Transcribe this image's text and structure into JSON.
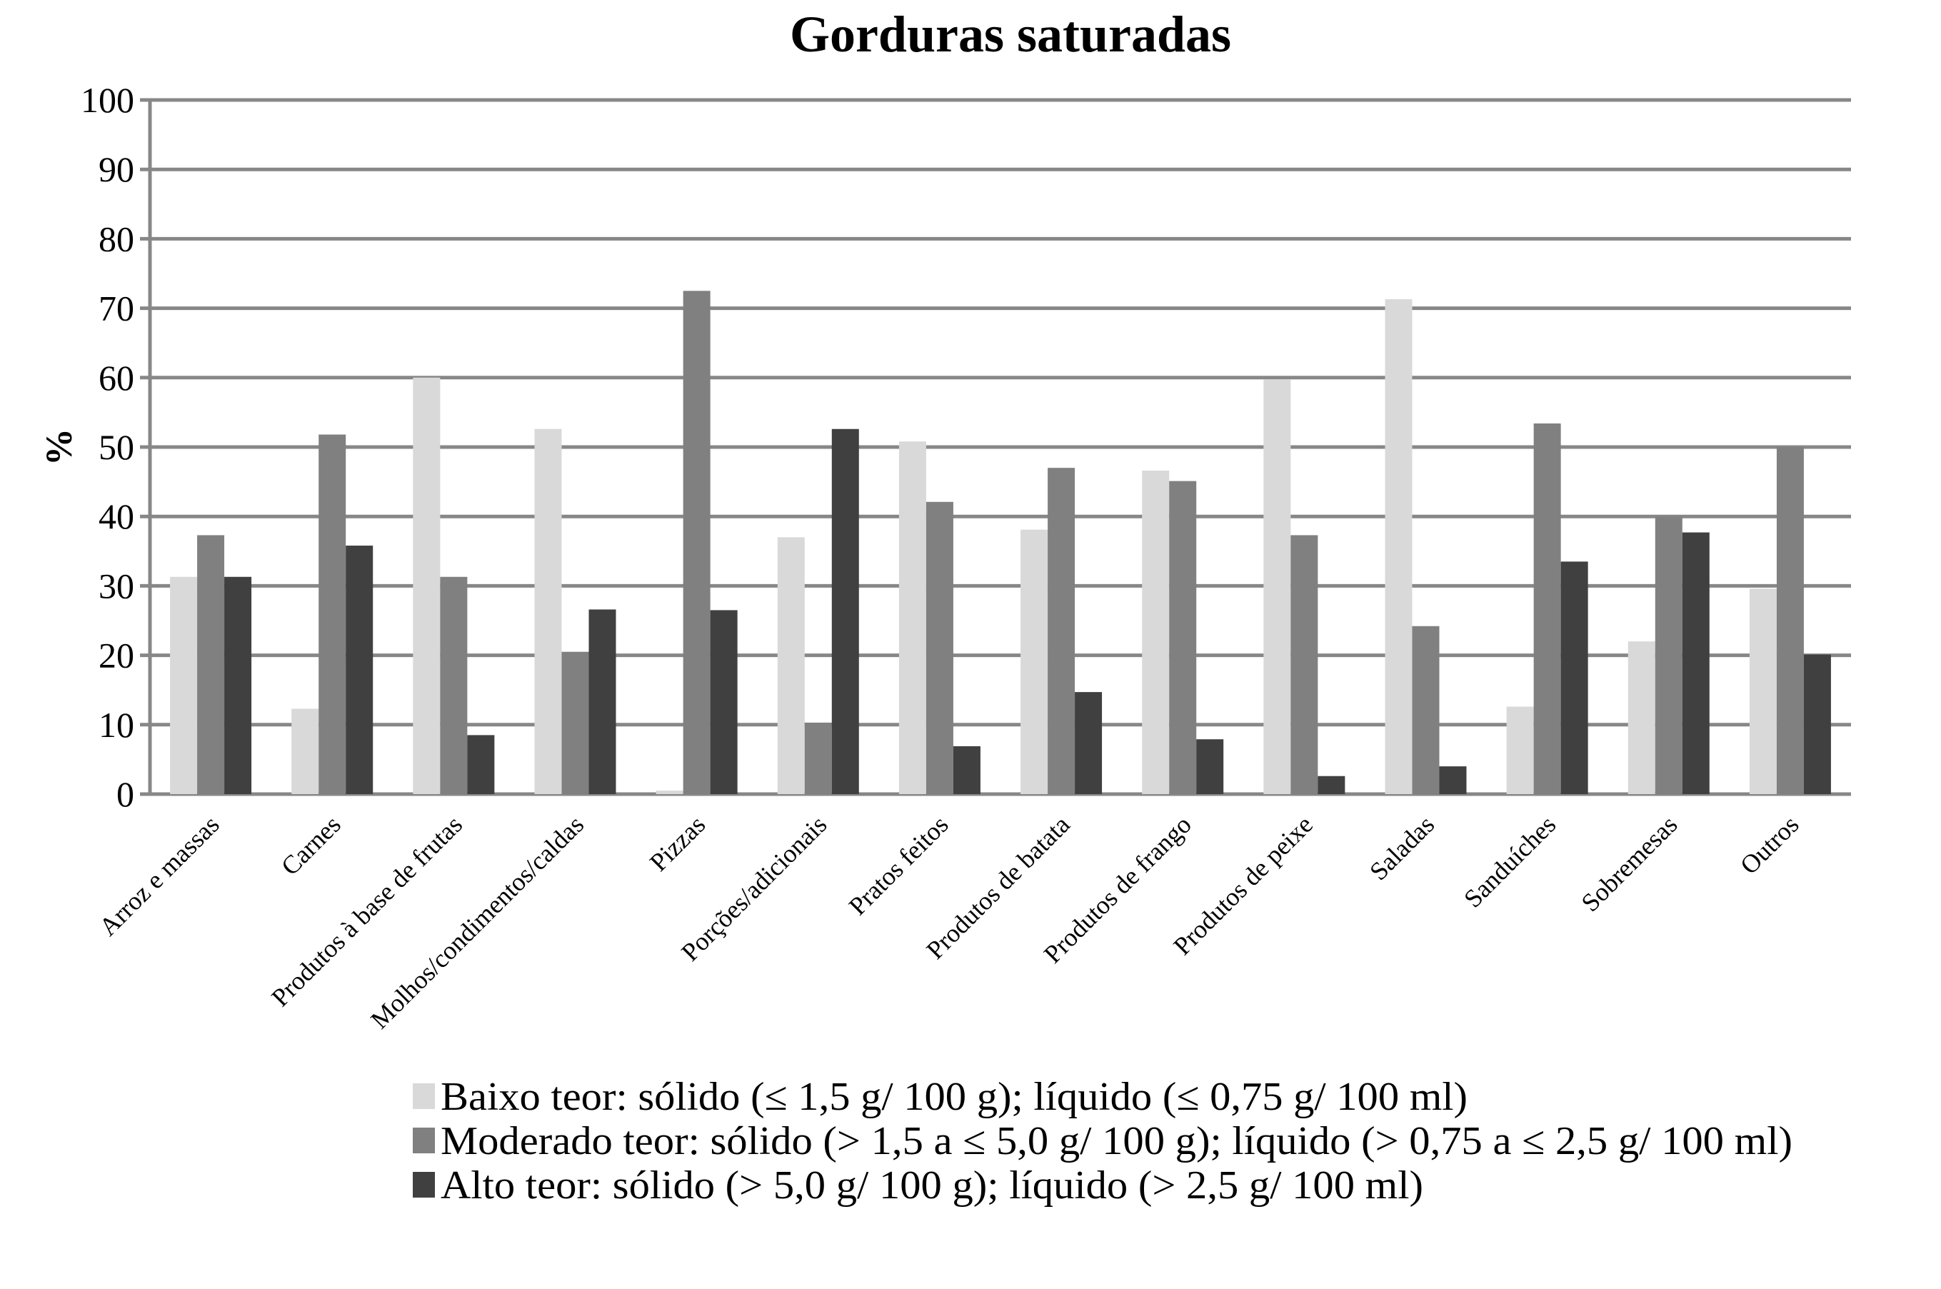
{
  "chart_data": {
    "type": "bar",
    "title": "Gorduras saturadas",
    "xlabel": "",
    "ylabel": "%",
    "ylim": [
      0,
      100
    ],
    "yticks": [
      0,
      10,
      20,
      30,
      40,
      50,
      60,
      70,
      80,
      90,
      100
    ],
    "grid": true,
    "legend_position": "bottom",
    "categories": [
      "Arroz e massas",
      "Carnes",
      "Produtos à base de frutas",
      "Molhos/condimentos/caldas",
      "Pizzas",
      "Porções/adicionais",
      "Pratos feitos",
      "Produtos de batata",
      "Produtos de frango",
      "Produtos de peixe",
      "Saladas",
      "Sanduíches",
      "Sobremesas",
      "Outros"
    ],
    "series": [
      {
        "name": "Baixo teor: sólido (≤ 1,5 g/ 100 g); líquido (≤ 0,75 g/ 100 ml)",
        "color": "#d9d9d9",
        "values": [
          31.3,
          12.3,
          60.0,
          52.6,
          0.5,
          37.0,
          50.8,
          38.1,
          46.6,
          59.7,
          71.3,
          12.6,
          22.0,
          29.6
        ]
      },
      {
        "name": "Moderado teor: sólido (> 1,5 a ≤ 5,0 g/ 100 g); líquido (> 0,75 a ≤ 2,5 g/ 100 ml)",
        "color": "#808080",
        "values": [
          37.3,
          51.8,
          31.3,
          20.5,
          72.5,
          10.3,
          42.1,
          47.0,
          45.1,
          37.3,
          24.2,
          53.4,
          40.0,
          50.0
        ]
      },
      {
        "name": "Alto teor: sólido (> 5,0 g/ 100 g); líquido (> 2,5 g/ 100 ml)",
        "color": "#404040",
        "values": [
          31.3,
          35.8,
          8.5,
          26.6,
          26.5,
          52.6,
          6.9,
          14.7,
          7.9,
          2.6,
          4.0,
          33.5,
          37.7,
          20.1
        ]
      }
    ]
  }
}
